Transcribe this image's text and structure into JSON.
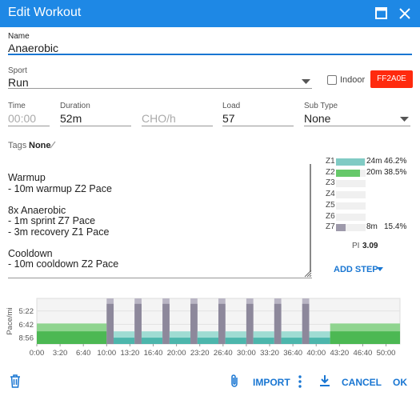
{
  "header": {
    "title": "Edit Workout"
  },
  "form": {
    "name": {
      "label": "Name",
      "value": "Anaerobic"
    },
    "sport": {
      "label": "Sport",
      "value": "Run"
    },
    "indoor": {
      "label": "Indoor"
    },
    "color_button": {
      "label": "FF2A0E"
    },
    "time": {
      "label": "Time",
      "placeholder": "00:00"
    },
    "duration": {
      "label": "Duration",
      "value": "52m"
    },
    "cho": {
      "placeholder": "CHO/h"
    },
    "load": {
      "label": "Load",
      "value": "57"
    },
    "sub_type": {
      "label": "Sub Type",
      "value": "None"
    },
    "tags": {
      "label": "Tags",
      "value": "None"
    }
  },
  "description": [
    [
      "Warmup",
      "- 10m warmup Z2 Pace"
    ],
    [
      "8x Anaerobic",
      "- 1m sprint Z7 Pace",
      "- 3m recovery Z1 Pace"
    ],
    [
      "Cooldown",
      "- 10m cooldown Z2 Pace"
    ]
  ],
  "zones": {
    "labels": [
      "Z1",
      "Z2",
      "Z3",
      "Z4",
      "Z5",
      "Z6",
      "Z7"
    ],
    "times": [
      "24m",
      "20m",
      null,
      null,
      null,
      null,
      "8m"
    ],
    "values": [
      46.2,
      38.5,
      null,
      null,
      null,
      null,
      15.4
    ],
    "value_labels": [
      "46.2%",
      "38.5%",
      null,
      null,
      null,
      null,
      "15.4%"
    ],
    "colors": [
      "#80cbc4",
      "#66c86a",
      null,
      null,
      null,
      null,
      "#9e9aab"
    ]
  },
  "pi": {
    "label": "PI",
    "value": "3.09"
  },
  "add_step": "ADD STEP",
  "chart": {
    "ylabel": "Pace/mi",
    "ylim": [
      636,
      271
    ],
    "xlim": [
      0,
      3120
    ],
    "yticks": [
      {
        "value": 322,
        "label": "5:22"
      },
      {
        "value": 402,
        "label": "6:42"
      },
      {
        "value": 536,
        "label": "8:56"
      }
    ],
    "xticks": [
      {
        "value": 0,
        "label": "0:00"
      },
      {
        "value": 200,
        "label": "3:20"
      },
      {
        "value": 400,
        "label": "6:40"
      },
      {
        "value": 600,
        "label": "10:00"
      },
      {
        "value": 800,
        "label": "13:20"
      },
      {
        "value": 1000,
        "label": "16:40"
      },
      {
        "value": 1200,
        "label": "20:00"
      },
      {
        "value": 1400,
        "label": "23:20"
      },
      {
        "value": 1600,
        "label": "26:40"
      },
      {
        "value": 1800,
        "label": "30:00"
      },
      {
        "value": 2000,
        "label": "33:20"
      },
      {
        "value": 2200,
        "label": "36:40"
      },
      {
        "value": 2400,
        "label": "40:00"
      },
      {
        "value": 2600,
        "label": "43:20"
      },
      {
        "value": 2800,
        "label": "46:40"
      },
      {
        "value": 3000,
        "label": "50:00"
      }
    ],
    "steps": [
      {
        "start": 0,
        "end": 600,
        "pace": [
          396,
          463
        ],
        "colors": [
          "#8fd48f",
          "#4cb853"
        ]
      },
      {
        "start": 600,
        "end": 660,
        "pace": [
          271,
          291
        ],
        "colors": [
          "#b9b5c4",
          "#8d889b"
        ]
      },
      {
        "start": 660,
        "end": 840,
        "pace": [
          463,
          536
        ],
        "colors": [
          "#9fdcd3",
          "#4db6ac"
        ]
      },
      {
        "start": 840,
        "end": 900,
        "pace": [
          271,
          291
        ],
        "colors": [
          "#b9b5c4",
          "#8d889b"
        ]
      },
      {
        "start": 900,
        "end": 1080,
        "pace": [
          463,
          536
        ],
        "colors": [
          "#9fdcd3",
          "#4db6ac"
        ]
      },
      {
        "start": 1080,
        "end": 1140,
        "pace": [
          271,
          291
        ],
        "colors": [
          "#b9b5c4",
          "#8d889b"
        ]
      },
      {
        "start": 1140,
        "end": 1320,
        "pace": [
          463,
          536
        ],
        "colors": [
          "#9fdcd3",
          "#4db6ac"
        ]
      },
      {
        "start": 1320,
        "end": 1380,
        "pace": [
          271,
          291
        ],
        "colors": [
          "#b9b5c4",
          "#8d889b"
        ]
      },
      {
        "start": 1380,
        "end": 1560,
        "pace": [
          463,
          536
        ],
        "colors": [
          "#9fdcd3",
          "#4db6ac"
        ]
      },
      {
        "start": 1560,
        "end": 1620,
        "pace": [
          271,
          291
        ],
        "colors": [
          "#b9b5c4",
          "#8d889b"
        ]
      },
      {
        "start": 1620,
        "end": 1800,
        "pace": [
          463,
          536
        ],
        "colors": [
          "#9fdcd3",
          "#4db6ac"
        ]
      },
      {
        "start": 1800,
        "end": 1860,
        "pace": [
          271,
          291
        ],
        "colors": [
          "#b9b5c4",
          "#8d889b"
        ]
      },
      {
        "start": 1860,
        "end": 2040,
        "pace": [
          463,
          536
        ],
        "colors": [
          "#9fdcd3",
          "#4db6ac"
        ]
      },
      {
        "start": 2040,
        "end": 2100,
        "pace": [
          271,
          291
        ],
        "colors": [
          "#b9b5c4",
          "#8d889b"
        ]
      },
      {
        "start": 2100,
        "end": 2280,
        "pace": [
          463,
          536
        ],
        "colors": [
          "#9fdcd3",
          "#4db6ac"
        ]
      },
      {
        "start": 2280,
        "end": 2340,
        "pace": [
          271,
          291
        ],
        "colors": [
          "#b9b5c4",
          "#8d889b"
        ]
      },
      {
        "start": 2340,
        "end": 2520,
        "pace": [
          463,
          536
        ],
        "colors": [
          "#9fdcd3",
          "#4db6ac"
        ]
      },
      {
        "start": 2520,
        "end": 3120,
        "pace": [
          396,
          463
        ],
        "colors": [
          "#8fd48f",
          "#4cb853"
        ]
      }
    ]
  },
  "footer": {
    "import": "IMPORT",
    "cancel": "CANCEL",
    "ok": "OK"
  }
}
